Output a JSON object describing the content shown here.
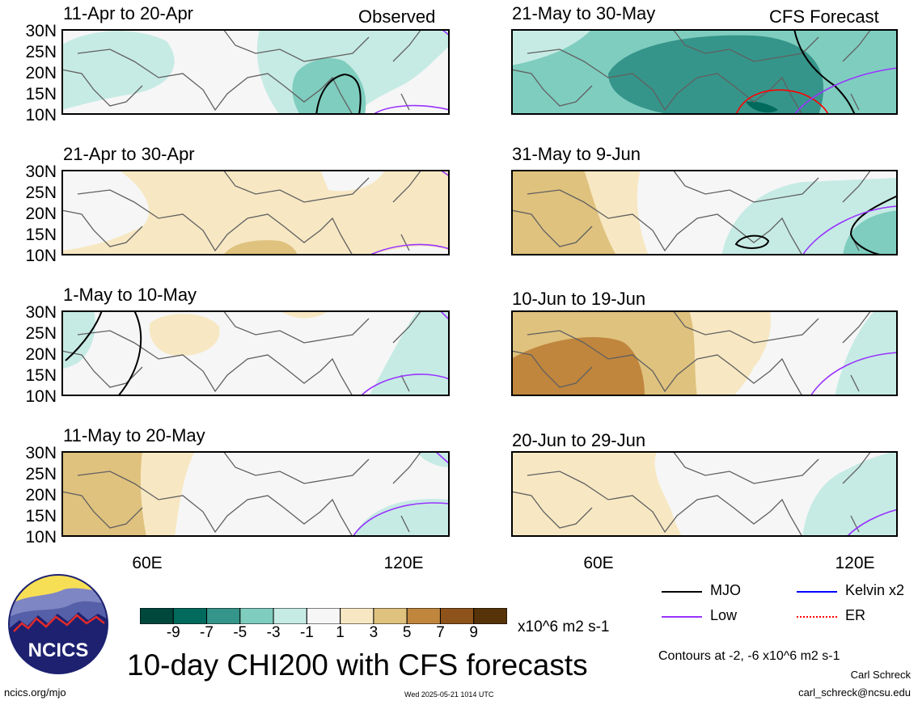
{
  "panels": [
    {
      "title": "11-Apr to 20-Apr",
      "tag": "Observed"
    },
    {
      "title": "21-Apr to 30-Apr",
      "tag": ""
    },
    {
      "title": "1-May to 10-May",
      "tag": ""
    },
    {
      "title": "11-May to 20-May",
      "tag": ""
    },
    {
      "title": "21-May to 30-May",
      "tag": "CFS Forecast"
    },
    {
      "title": "31-May to 9-Jun",
      "tag": ""
    },
    {
      "title": "10-Jun to 19-Jun",
      "tag": ""
    },
    {
      "title": "20-Jun to 29-Jun",
      "tag": ""
    }
  ],
  "y_ticks": [
    "30N",
    "25N",
    "20N",
    "15N",
    "10N"
  ],
  "x_ticks": [
    "60E",
    "120E"
  ],
  "colorbar": {
    "colors": [
      "#00473c",
      "#006a5c",
      "#36958a",
      "#7fcdbf",
      "#c6ebe4",
      "#f6f6f6",
      "#f7e8c3",
      "#dfc27e",
      "#c0863d",
      "#8e531b",
      "#563309"
    ],
    "labels": [
      "-9",
      "-7",
      "-5",
      "-3",
      "-1",
      "1",
      "3",
      "5",
      "7",
      "9"
    ],
    "units": "x10^6 m2 s-1"
  },
  "colors": {
    "mjo": "#000000",
    "low": "#9933ff",
    "kelvin": "#0000ff",
    "er": "#ff0000",
    "coast": "#606060"
  },
  "title": "10-day CHI200 with CFS forecasts",
  "legend": {
    "mjo": "MJO",
    "kelvin": "Kelvin x2",
    "low": "Low",
    "er": "ER"
  },
  "contours_note": "Contours at -2, -6 x10^6 m2 s-1",
  "author": "Carl Schreck",
  "email": "carl_schreck@ncsu.edu",
  "website": "ncics.org/mjo",
  "timestamp": "Wed 2025-05-21 1014 UTC",
  "logo_text": "NCICS"
}
